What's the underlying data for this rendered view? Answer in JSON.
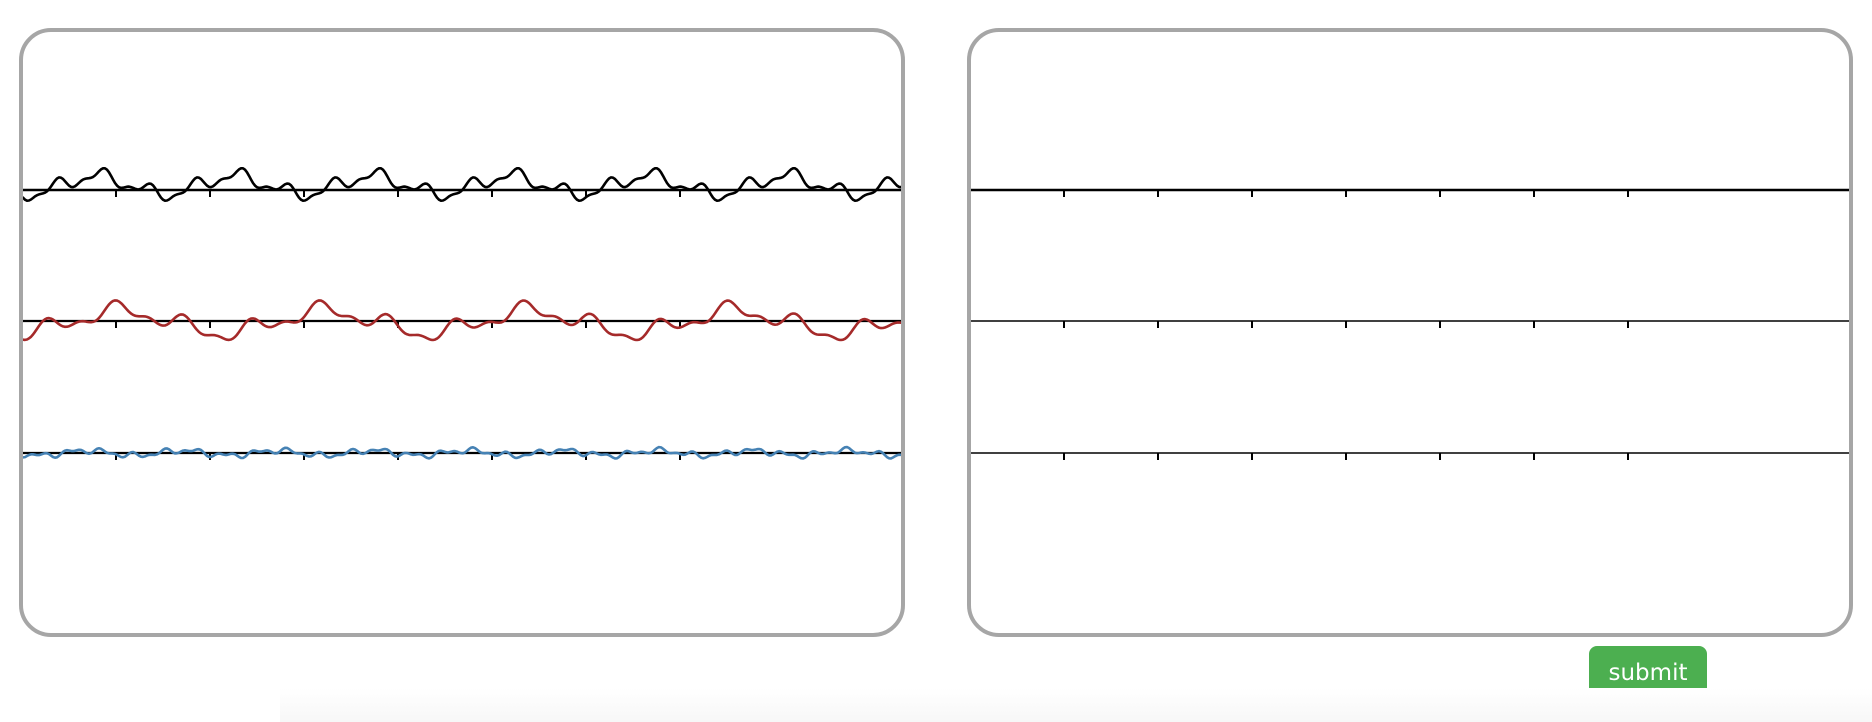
{
  "submit": {
    "label": "submit"
  },
  "colors": {
    "panel_border": "#a6a6a6",
    "axis": "#000000",
    "trace_top": "#000000",
    "trace_middle": "#a52a2a",
    "trace_bottom": "#4682b4",
    "submit_bg": "#4caf50",
    "submit_text": "#ffffff"
  },
  "left_panel": {
    "axes_count": 3,
    "ticks_per_axis": 7,
    "traces": [
      {
        "name": "",
        "color": "#000000"
      },
      {
        "name": "",
        "color": "#a52a2a"
      },
      {
        "name": "",
        "color": "#4682b4"
      }
    ]
  },
  "right_panel": {
    "axes_count": 3,
    "ticks_per_axis": 7,
    "traces": []
  }
}
